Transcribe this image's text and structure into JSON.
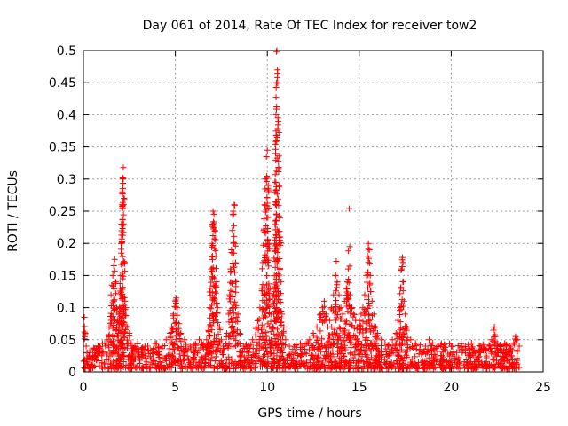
{
  "chart_data": {
    "type": "scatter",
    "title": "Day 061 of 2014, Rate Of TEC Index for receiver tow2",
    "xlabel": "GPS time / hours",
    "ylabel": "ROTI / TECUs",
    "xlim": [
      0,
      25
    ],
    "ylim": [
      0,
      0.5
    ],
    "xticks": [
      0,
      5,
      10,
      15,
      20,
      25
    ],
    "xtick_labels": [
      "0",
      "5",
      "10",
      "15",
      "20",
      "25"
    ],
    "yticks": [
      0,
      0.05,
      0.1,
      0.15,
      0.2,
      0.25,
      0.3,
      0.35,
      0.4,
      0.45,
      0.5
    ],
    "ytick_labels": [
      "0",
      "0.05",
      "0.1",
      "0.15",
      "0.2",
      "0.25",
      "0.3",
      "0.35",
      "0.4",
      "0.45",
      "0.5"
    ],
    "grid": true,
    "marker": "plus",
    "color": "#ff0000",
    "series": [
      {
        "name": "ROTI",
        "points": [
          [
            0.05,
            0.085
          ],
          [
            0.1,
            0.06
          ],
          [
            0.15,
            0.04
          ],
          [
            0.2,
            0.03
          ],
          [
            0.3,
            0.025
          ],
          [
            0.4,
            0.02
          ],
          [
            0.5,
            0.03
          ],
          [
            0.6,
            0.02
          ],
          [
            0.8,
            0.03
          ],
          [
            1.0,
            0.025
          ],
          [
            1.2,
            0.04
          ],
          [
            1.3,
            0.05
          ],
          [
            1.4,
            0.07
          ],
          [
            1.5,
            0.12
          ],
          [
            1.55,
            0.135
          ],
          [
            1.6,
            0.15
          ],
          [
            1.65,
            0.165
          ],
          [
            1.7,
            0.175
          ],
          [
            1.75,
            0.14
          ],
          [
            1.8,
            0.1
          ],
          [
            1.85,
            0.08
          ],
          [
            1.9,
            0.06
          ],
          [
            1.95,
            0.09
          ],
          [
            2.0,
            0.13
          ],
          [
            2.02,
            0.15
          ],
          [
            2.05,
            0.2
          ],
          [
            2.07,
            0.23
          ],
          [
            2.1,
            0.26
          ],
          [
            2.12,
            0.28
          ],
          [
            2.15,
            0.3
          ],
          [
            2.17,
            0.318
          ],
          [
            2.2,
            0.27
          ],
          [
            2.25,
            0.17
          ],
          [
            2.3,
            0.1
          ],
          [
            2.4,
            0.07
          ],
          [
            2.5,
            0.06
          ],
          [
            2.6,
            0.045
          ],
          [
            2.8,
            0.04
          ],
          [
            3.0,
            0.035
          ],
          [
            3.2,
            0.03
          ],
          [
            3.5,
            0.04
          ],
          [
            3.8,
            0.035
          ],
          [
            4.0,
            0.03
          ],
          [
            4.3,
            0.04
          ],
          [
            4.5,
            0.05
          ],
          [
            4.7,
            0.06
          ],
          [
            4.8,
            0.07
          ],
          [
            4.9,
            0.09
          ],
          [
            5.0,
            0.11
          ],
          [
            5.05,
            0.115
          ],
          [
            5.1,
            0.1
          ],
          [
            5.2,
            0.075
          ],
          [
            5.3,
            0.06
          ],
          [
            5.5,
            0.05
          ],
          [
            5.8,
            0.04
          ],
          [
            6.0,
            0.03
          ],
          [
            6.3,
            0.05
          ],
          [
            6.5,
            0.04
          ],
          [
            6.7,
            0.05
          ],
          [
            6.8,
            0.07
          ],
          [
            6.85,
            0.1
          ],
          [
            6.9,
            0.13
          ],
          [
            6.95,
            0.16
          ],
          [
            7.0,
            0.2
          ],
          [
            7.02,
            0.23
          ],
          [
            7.05,
            0.25
          ],
          [
            7.1,
            0.245
          ],
          [
            7.15,
            0.22
          ],
          [
            7.2,
            0.18
          ],
          [
            7.25,
            0.14
          ],
          [
            7.3,
            0.1
          ],
          [
            7.4,
            0.07
          ],
          [
            7.5,
            0.05
          ],
          [
            7.6,
            0.04
          ],
          [
            7.8,
            0.06
          ],
          [
            7.9,
            0.09
          ],
          [
            7.95,
            0.12
          ],
          [
            8.0,
            0.16
          ],
          [
            8.05,
            0.19
          ],
          [
            8.1,
            0.22
          ],
          [
            8.15,
            0.25
          ],
          [
            8.2,
            0.26
          ],
          [
            8.25,
            0.2
          ],
          [
            8.3,
            0.14
          ],
          [
            8.4,
            0.09
          ],
          [
            8.5,
            0.06
          ],
          [
            8.7,
            0.04
          ],
          [
            9.0,
            0.03
          ],
          [
            9.2,
            0.05
          ],
          [
            9.4,
            0.07
          ],
          [
            9.5,
            0.08
          ],
          [
            9.6,
            0.1
          ],
          [
            9.7,
            0.13
          ],
          [
            9.75,
            0.17
          ],
          [
            9.8,
            0.22
          ],
          [
            9.85,
            0.26
          ],
          [
            9.9,
            0.3
          ],
          [
            9.95,
            0.335
          ],
          [
            10.0,
            0.345
          ],
          [
            10.05,
            0.29
          ],
          [
            10.1,
            0.2
          ],
          [
            10.15,
            0.13
          ],
          [
            10.2,
            0.09
          ],
          [
            10.3,
            0.07
          ],
          [
            10.35,
            0.12
          ],
          [
            10.4,
            0.2
          ],
          [
            10.42,
            0.28
          ],
          [
            10.45,
            0.34
          ],
          [
            10.47,
            0.4
          ],
          [
            10.5,
            0.45
          ],
          [
            10.52,
            0.5
          ],
          [
            10.55,
            0.47
          ],
          [
            10.6,
            0.39
          ],
          [
            10.65,
            0.29
          ],
          [
            10.7,
            0.21
          ],
          [
            10.75,
            0.14
          ],
          [
            10.8,
            0.09
          ],
          [
            10.9,
            0.07
          ],
          [
            11.0,
            0.05
          ],
          [
            11.2,
            0.04
          ],
          [
            11.5,
            0.03
          ],
          [
            11.8,
            0.035
          ],
          [
            12.0,
            0.04
          ],
          [
            12.3,
            0.05
          ],
          [
            12.5,
            0.06
          ],
          [
            12.7,
            0.07
          ],
          [
            12.9,
            0.09
          ],
          [
            13.0,
            0.1
          ],
          [
            13.1,
            0.11
          ],
          [
            13.2,
            0.09
          ],
          [
            13.3,
            0.07
          ],
          [
            13.4,
            0.08
          ],
          [
            13.5,
            0.1
          ],
          [
            13.6,
            0.12
          ],
          [
            13.7,
            0.15
          ],
          [
            13.75,
            0.172
          ],
          [
            13.8,
            0.14
          ],
          [
            13.9,
            0.12
          ],
          [
            14.0,
            0.1
          ],
          [
            14.1,
            0.09
          ],
          [
            14.2,
            0.11
          ],
          [
            14.3,
            0.13
          ],
          [
            14.35,
            0.14
          ],
          [
            14.4,
            0.16
          ],
          [
            14.45,
            0.254
          ],
          [
            14.5,
            0.12
          ],
          [
            14.6,
            0.1
          ],
          [
            14.7,
            0.09
          ],
          [
            14.8,
            0.08
          ],
          [
            14.9,
            0.07
          ],
          [
            15.0,
            0.08
          ],
          [
            15.1,
            0.09
          ],
          [
            15.2,
            0.1
          ],
          [
            15.3,
            0.12
          ],
          [
            15.4,
            0.15
          ],
          [
            15.45,
            0.18
          ],
          [
            15.5,
            0.2
          ],
          [
            15.55,
            0.19
          ],
          [
            15.6,
            0.15
          ],
          [
            15.7,
            0.11
          ],
          [
            15.8,
            0.09
          ],
          [
            15.9,
            0.07
          ],
          [
            16.0,
            0.06
          ],
          [
            16.2,
            0.05
          ],
          [
            16.4,
            0.045
          ],
          [
            16.6,
            0.04
          ],
          [
            16.8,
            0.05
          ],
          [
            17.0,
            0.06
          ],
          [
            17.1,
            0.08
          ],
          [
            17.2,
            0.1
          ],
          [
            17.25,
            0.13
          ],
          [
            17.3,
            0.16
          ],
          [
            17.35,
            0.178
          ],
          [
            17.4,
            0.14
          ],
          [
            17.5,
            0.09
          ],
          [
            17.6,
            0.07
          ],
          [
            17.8,
            0.05
          ],
          [
            18.0,
            0.04
          ],
          [
            18.3,
            0.035
          ],
          [
            18.6,
            0.04
          ],
          [
            18.8,
            0.05
          ],
          [
            19.0,
            0.045
          ],
          [
            19.3,
            0.04
          ],
          [
            19.6,
            0.035
          ],
          [
            20.0,
            0.04
          ],
          [
            20.3,
            0.03
          ],
          [
            20.6,
            0.03
          ],
          [
            21.0,
            0.035
          ],
          [
            21.3,
            0.03
          ],
          [
            21.6,
            0.03
          ],
          [
            21.9,
            0.035
          ],
          [
            22.1,
            0.04
          ],
          [
            22.2,
            0.05
          ],
          [
            22.3,
            0.065
          ],
          [
            22.35,
            0.07
          ],
          [
            22.4,
            0.055
          ],
          [
            22.5,
            0.04
          ],
          [
            22.8,
            0.03
          ],
          [
            23.0,
            0.035
          ],
          [
            23.2,
            0.04
          ],
          [
            23.4,
            0.045
          ],
          [
            23.5,
            0.055
          ],
          [
            23.6,
            0.05
          ],
          [
            23.7,
            0.04
          ]
        ],
        "noise_band": {
          "x_start": 0.0,
          "x_end": 23.7,
          "y_min": 0.005,
          "y_max": 0.045,
          "count": 1400
        }
      }
    ]
  }
}
